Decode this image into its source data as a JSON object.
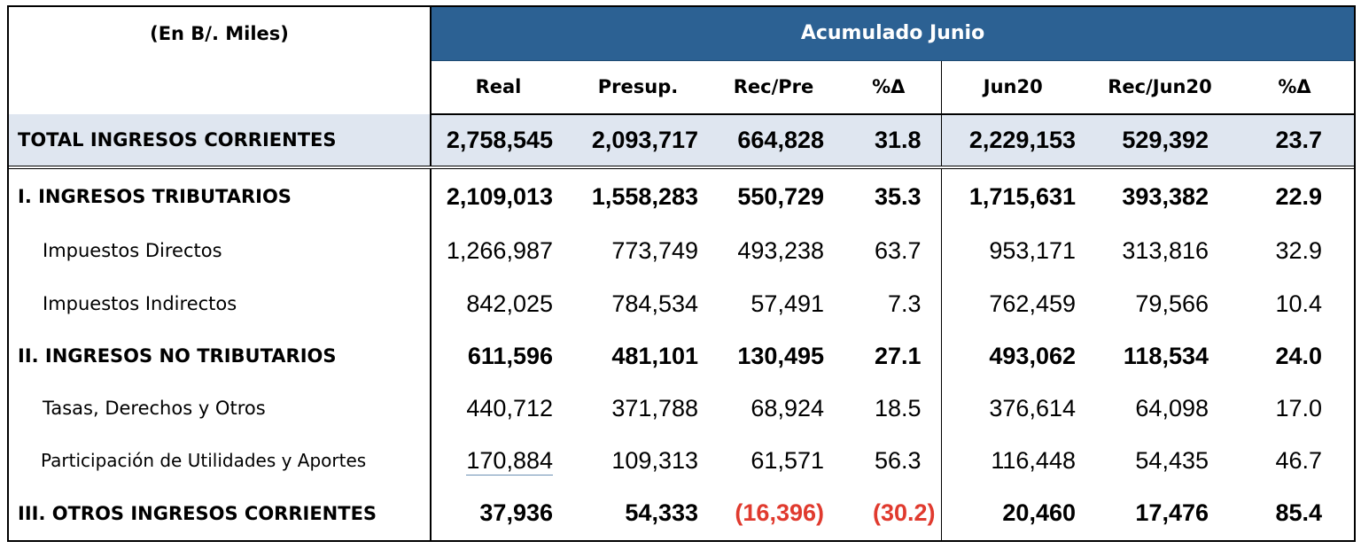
{
  "units_label": "(En B/. Miles)",
  "banner_title": "Acumulado Junio",
  "columns": [
    "Real",
    "Presup.",
    "Rec/Pre",
    "%Δ",
    "Jun20",
    "Rec/Jun20",
    "%Δ"
  ],
  "colors": {
    "banner": "#2c6193",
    "total_row_bg": "#dfe6f0",
    "negative": "#e03a2e"
  },
  "total_row": {
    "label": "TOTAL INGRESOS CORRIENTES",
    "values": [
      "2,758,545",
      "2,093,717",
      "664,828",
      "31.8",
      "2,229,153",
      "529,392",
      "23.7"
    ]
  },
  "rows": [
    {
      "label": "I. INGRESOS TRIBUTARIOS",
      "values": [
        "2,109,013",
        "1,558,283",
        "550,729",
        "35.3",
        "1,715,631",
        "393,382",
        "22.9"
      ]
    },
    {
      "label": "Impuestos Directos",
      "values": [
        "1,266,987",
        "773,749",
        "493,238",
        "63.7",
        "953,171",
        "313,816",
        "32.9"
      ]
    },
    {
      "label": "Impuestos Indirectos",
      "values": [
        "842,025",
        "784,534",
        "57,491",
        "7.3",
        "762,459",
        "79,566",
        "10.4"
      ]
    },
    {
      "label": "II. INGRESOS NO TRIBUTARIOS",
      "values": [
        "611,596",
        "481,101",
        "130,495",
        "27.1",
        "493,062",
        "118,534",
        "24.0"
      ]
    },
    {
      "label": "Tasas, Derechos y Otros",
      "values": [
        "440,712",
        "371,788",
        "68,924",
        "18.5",
        "376,614",
        "64,098",
        "17.0"
      ]
    },
    {
      "label": "Participación de Utilidades y Aportes",
      "values": [
        "170,884",
        "109,313",
        "61,571",
        "56.3",
        "116,448",
        "54,435",
        "46.7"
      ]
    },
    {
      "label": "III. OTROS INGRESOS CORRIENTES",
      "values": [
        "37,936",
        "54,333",
        "(16,396)",
        "(30.2)",
        "20,460",
        "17,476",
        "85.4"
      ]
    }
  ]
}
